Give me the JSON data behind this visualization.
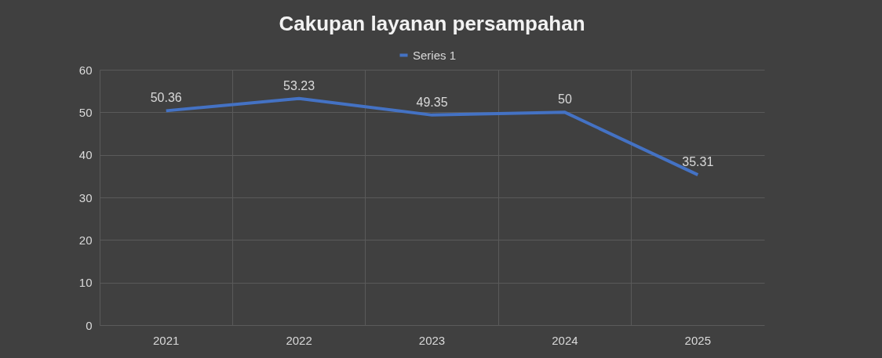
{
  "chart_data": {
    "type": "line",
    "title": "Cakupan layanan persampahan",
    "categories": [
      "2021",
      "2022",
      "2023",
      "2024",
      "2025"
    ],
    "series": [
      {
        "name": "Series 1",
        "color": "#4472c4",
        "values": [
          50.36,
          53.23,
          49.35,
          50,
          35.31
        ]
      }
    ],
    "ylim": [
      0,
      60
    ],
    "yticks": [
      0,
      10,
      20,
      30,
      40,
      50,
      60
    ],
    "grid": true,
    "legend": "top",
    "data_labels": true,
    "marker": "none",
    "line_style": "solid"
  }
}
